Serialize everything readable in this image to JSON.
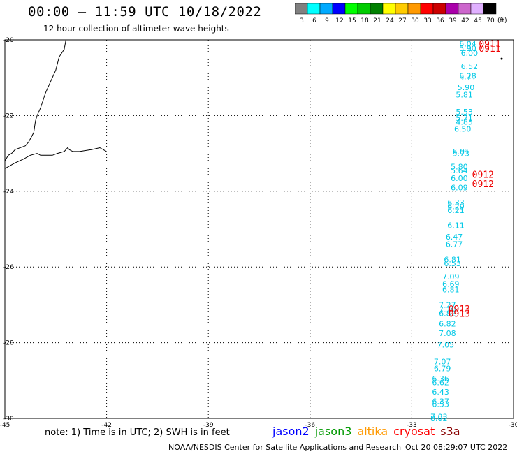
{
  "header": {
    "title": "00:00 – 11:59 UTC 10/18/2022",
    "subtitle": "12 hour collection of altimeter wave heights"
  },
  "legend": {
    "unit_label": "(ft)",
    "bins": [
      {
        "label": "3",
        "color": "#808080"
      },
      {
        "label": "6",
        "color": "#00ffff"
      },
      {
        "label": "9",
        "color": "#00aaff"
      },
      {
        "label": "12",
        "color": "#0000ff"
      },
      {
        "label": "15",
        "color": "#00ff00"
      },
      {
        "label": "18",
        "color": "#00cc00"
      },
      {
        "label": "21",
        "color": "#008000"
      },
      {
        "label": "24",
        "color": "#ffff00"
      },
      {
        "label": "27",
        "color": "#ffcc00"
      },
      {
        "label": "30",
        "color": "#ff9900"
      },
      {
        "label": "33",
        "color": "#ff0000"
      },
      {
        "label": "36",
        "color": "#cc0000"
      },
      {
        "label": "39",
        "color": "#aa00aa"
      },
      {
        "label": "42",
        "color": "#cc66cc"
      },
      {
        "label": "45",
        "color": "#e0b0ff"
      },
      {
        "label": "70",
        "color": "#000000"
      }
    ]
  },
  "chart_data": {
    "type": "map",
    "xlim": [
      -45,
      -30
    ],
    "ylim": [
      -30,
      -20
    ],
    "x_ticks": [
      {
        "value": -45,
        "label": "-45"
      },
      {
        "value": -42,
        "label": "-42"
      },
      {
        "value": -39,
        "label": "-39"
      },
      {
        "value": -36,
        "label": "-36"
      },
      {
        "value": -33,
        "label": "-33"
      },
      {
        "value": -30,
        "label": "-30"
      }
    ],
    "y_ticks": [
      {
        "value": -20,
        "label": "-20"
      },
      {
        "value": -22,
        "label": "-22"
      },
      {
        "value": -24,
        "label": "-24"
      },
      {
        "value": -26,
        "label": "-26"
      },
      {
        "value": -28,
        "label": "-28"
      },
      {
        "value": -30,
        "label": "-30"
      }
    ],
    "grid": true,
    "wave_heights": [
      {
        "lon": -31.35,
        "lat": -20.1,
        "label": "6.04"
      },
      {
        "lon": -31.35,
        "lat": -20.22,
        "label": "5.90"
      },
      {
        "lon": -31.3,
        "lat": -20.35,
        "label": "6.00"
      },
      {
        "lon": -31.3,
        "lat": -20.7,
        "label": "6.52"
      },
      {
        "lon": -31.35,
        "lat": -20.95,
        "label": "6.28"
      },
      {
        "lon": -31.35,
        "lat": -21.0,
        "label": "5.71"
      },
      {
        "lon": -31.4,
        "lat": -21.25,
        "label": "5.90"
      },
      {
        "lon": -31.45,
        "lat": -21.45,
        "label": "5.81"
      },
      {
        "lon": -31.45,
        "lat": -21.9,
        "label": "5.53"
      },
      {
        "lon": -31.45,
        "lat": -22.07,
        "label": "5.71"
      },
      {
        "lon": -31.45,
        "lat": -22.17,
        "label": "4.85"
      },
      {
        "lon": -31.5,
        "lat": -22.35,
        "label": "6.50"
      },
      {
        "lon": -31.55,
        "lat": -22.95,
        "label": "6.01"
      },
      {
        "lon": -31.55,
        "lat": -23.0,
        "label": "5.73"
      },
      {
        "lon": -31.6,
        "lat": -23.35,
        "label": "5.80"
      },
      {
        "lon": -31.6,
        "lat": -23.45,
        "label": "5.64"
      },
      {
        "lon": -31.6,
        "lat": -23.65,
        "label": "6.00"
      },
      {
        "lon": -31.6,
        "lat": -23.9,
        "label": "6.09"
      },
      {
        "lon": -31.7,
        "lat": -24.3,
        "label": "6.33"
      },
      {
        "lon": -31.7,
        "lat": -24.4,
        "label": "6.29"
      },
      {
        "lon": -31.7,
        "lat": -24.5,
        "label": "6.21"
      },
      {
        "lon": -31.7,
        "lat": -24.9,
        "label": "6.11"
      },
      {
        "lon": -31.75,
        "lat": -25.2,
        "label": "6.47"
      },
      {
        "lon": -31.75,
        "lat": -25.4,
        "label": "6.77"
      },
      {
        "lon": -31.8,
        "lat": -25.8,
        "label": "6.81"
      },
      {
        "lon": -31.8,
        "lat": -25.9,
        "label": "6.53"
      },
      {
        "lon": -31.85,
        "lat": -26.25,
        "label": "7.09"
      },
      {
        "lon": -31.85,
        "lat": -26.45,
        "label": "6.69"
      },
      {
        "lon": -31.85,
        "lat": -26.6,
        "label": "6.81"
      },
      {
        "lon": -31.95,
        "lat": -27.0,
        "label": "7.27"
      },
      {
        "lon": -31.95,
        "lat": -27.12,
        "label": "7.10"
      },
      {
        "lon": -31.95,
        "lat": -27.22,
        "label": "6.82"
      },
      {
        "lon": -31.95,
        "lat": -27.5,
        "label": "6.82"
      },
      {
        "lon": -31.95,
        "lat": -27.75,
        "label": "7.08"
      },
      {
        "lon": -32.0,
        "lat": -28.05,
        "label": "7.05"
      },
      {
        "lon": -32.1,
        "lat": -28.5,
        "label": "7.07"
      },
      {
        "lon": -32.1,
        "lat": -28.68,
        "label": "6.79"
      },
      {
        "lon": -32.15,
        "lat": -28.95,
        "label": "6.36"
      },
      {
        "lon": -32.15,
        "lat": -29.05,
        "label": "6.62"
      },
      {
        "lon": -32.15,
        "lat": -29.3,
        "label": "6.43"
      },
      {
        "lon": -32.15,
        "lat": -29.55,
        "label": "6.37"
      },
      {
        "lon": -32.15,
        "lat": -29.62,
        "label": "6.53"
      },
      {
        "lon": -32.2,
        "lat": -29.95,
        "label": "7.03"
      },
      {
        "lon": -32.2,
        "lat": -30.0,
        "label": "8.02"
      }
    ],
    "time_labels": [
      {
        "lon": -30.7,
        "lat": -20.1,
        "label": "0911"
      },
      {
        "lon": -30.7,
        "lat": -20.22,
        "label": "0911"
      },
      {
        "lon": -30.9,
        "lat": -23.55,
        "label": "0912"
      },
      {
        "lon": -30.9,
        "lat": -23.8,
        "label": "0912"
      },
      {
        "lon": -31.6,
        "lat": -27.1,
        "label": "0913"
      },
      {
        "lon": -31.6,
        "lat": -27.22,
        "label": "0913"
      }
    ],
    "markers": [
      {
        "lon": -30.35,
        "lat": -20.5
      }
    ],
    "coastline": [
      [
        -43.2,
        -20.0
      ],
      [
        -43.25,
        -20.25
      ],
      [
        -43.4,
        -20.45
      ],
      [
        -43.5,
        -20.8
      ],
      [
        -43.65,
        -21.1
      ],
      [
        -43.8,
        -21.4
      ],
      [
        -43.95,
        -21.8
      ],
      [
        -44.05,
        -22.0
      ],
      [
        -44.1,
        -22.15
      ],
      [
        -44.15,
        -22.45
      ],
      [
        -44.3,
        -22.7
      ],
      [
        -44.4,
        -22.8
      ],
      [
        -44.7,
        -22.9
      ],
      [
        -44.8,
        -23.0
      ],
      [
        -44.9,
        -23.05
      ],
      [
        -45.0,
        -23.2
      ]
    ],
    "coastline2": [
      [
        -42.0,
        -22.95
      ],
      [
        -42.2,
        -22.85
      ],
      [
        -42.45,
        -22.9
      ],
      [
        -42.8,
        -22.95
      ],
      [
        -43.0,
        -22.95
      ],
      [
        -43.1,
        -22.9
      ],
      [
        -43.15,
        -22.85
      ],
      [
        -43.25,
        -22.95
      ],
      [
        -43.45,
        -23.0
      ],
      [
        -43.6,
        -23.05
      ],
      [
        -43.75,
        -23.05
      ],
      [
        -43.95,
        -23.05
      ],
      [
        -44.05,
        -23.0
      ],
      [
        -44.25,
        -23.05
      ],
      [
        -44.45,
        -23.15
      ],
      [
        -44.7,
        -23.25
      ],
      [
        -44.9,
        -23.35
      ],
      [
        -45.0,
        -23.4
      ]
    ]
  },
  "footer": {
    "note": "note: 1) Time is in UTC; 2) SWH is in feet",
    "satellites": [
      {
        "name": "jason2",
        "color": "#0000ff"
      },
      {
        "name": "jason3",
        "color": "#009900"
      },
      {
        "name": "altika",
        "color": "#ff9900"
      },
      {
        "name": "cryosat",
        "color": "#ff0000"
      },
      {
        "name": "s3a",
        "color": "#880000"
      }
    ],
    "credit": "NOAA/NESDIS Center for Satellite Applications and Research",
    "generated": "Oct 20 08:29:07 UTC 2022"
  },
  "colors": {
    "swh_label": "#00c8e6",
    "time_label": "#ee0000",
    "grid": "#000000"
  }
}
